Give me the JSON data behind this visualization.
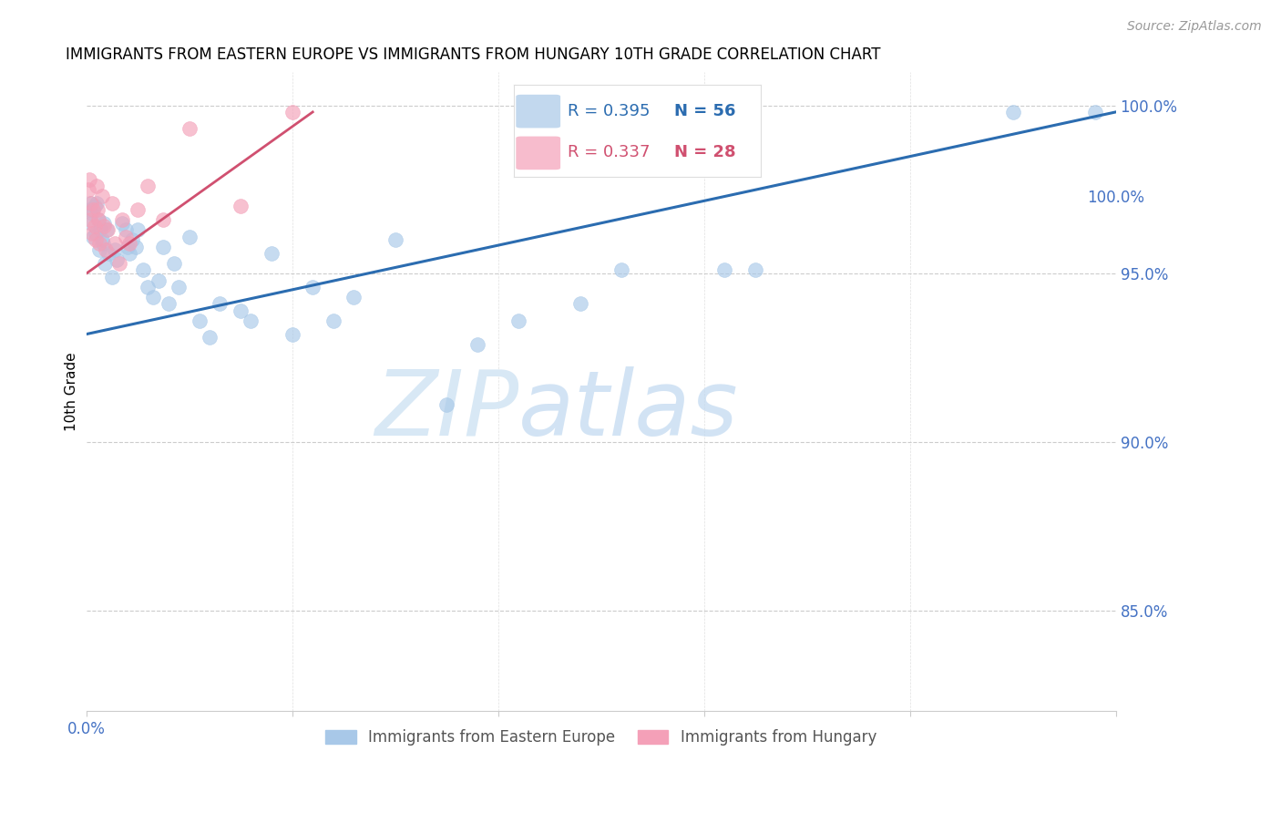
{
  "title": "IMMIGRANTS FROM EASTERN EUROPE VS IMMIGRANTS FROM HUNGARY 10TH GRADE CORRELATION CHART",
  "source": "Source: ZipAtlas.com",
  "ylabel": "10th Grade",
  "blue_label": "Immigrants from Eastern Europe",
  "pink_label": "Immigrants from Hungary",
  "blue_R": "R = 0.395",
  "blue_N": "N = 56",
  "pink_R": "R = 0.337",
  "pink_N": "N = 28",
  "blue_color": "#a8c8e8",
  "pink_color": "#f4a0b8",
  "blue_line_color": "#2b6cb0",
  "pink_line_color": "#d05070",
  "background_color": "#ffffff",
  "grid_color": "#cccccc",
  "watermark_zip": "ZIP",
  "watermark_atlas": "atlas",
  "blue_points_x": [
    0.003,
    0.004,
    0.005,
    0.006,
    0.007,
    0.008,
    0.009,
    0.01,
    0.012,
    0.013,
    0.014,
    0.015,
    0.016,
    0.017,
    0.018,
    0.02,
    0.022,
    0.025,
    0.028,
    0.03,
    0.035,
    0.038,
    0.04,
    0.042,
    0.045,
    0.048,
    0.05,
    0.055,
    0.06,
    0.065,
    0.07,
    0.075,
    0.08,
    0.085,
    0.09,
    0.1,
    0.11,
    0.12,
    0.13,
    0.15,
    0.16,
    0.18,
    0.2,
    0.22,
    0.24,
    0.26,
    0.3,
    0.35,
    0.38,
    0.42,
    0.48,
    0.52,
    0.62,
    0.65,
    0.9,
    0.98
  ],
  "blue_points_y": [
    0.969,
    0.971,
    0.965,
    0.968,
    0.961,
    0.97,
    0.962,
    0.971,
    0.966,
    0.957,
    0.963,
    0.96,
    0.959,
    0.965,
    0.953,
    0.963,
    0.956,
    0.949,
    0.957,
    0.954,
    0.965,
    0.963,
    0.958,
    0.956,
    0.96,
    0.958,
    0.963,
    0.951,
    0.946,
    0.943,
    0.948,
    0.958,
    0.941,
    0.953,
    0.946,
    0.961,
    0.936,
    0.931,
    0.941,
    0.939,
    0.936,
    0.956,
    0.932,
    0.946,
    0.936,
    0.943,
    0.96,
    0.911,
    0.929,
    0.936,
    0.941,
    0.951,
    0.951,
    0.951,
    0.998,
    0.998
  ],
  "pink_points_x": [
    0.002,
    0.003,
    0.004,
    0.005,
    0.006,
    0.007,
    0.008,
    0.009,
    0.01,
    0.011,
    0.012,
    0.013,
    0.015,
    0.017,
    0.019,
    0.021,
    0.025,
    0.028,
    0.032,
    0.035,
    0.038,
    0.042,
    0.05,
    0.06,
    0.075,
    0.1,
    0.15,
    0.2
  ],
  "pink_points_y": [
    0.975,
    0.978,
    0.966,
    0.971,
    0.962,
    0.969,
    0.964,
    0.96,
    0.976,
    0.969,
    0.966,
    0.959,
    0.973,
    0.964,
    0.957,
    0.963,
    0.971,
    0.959,
    0.953,
    0.966,
    0.961,
    0.959,
    0.969,
    0.976,
    0.966,
    0.993,
    0.97,
    0.998
  ],
  "blue_trend_x": [
    0.0,
    1.0
  ],
  "blue_trend_y": [
    0.932,
    0.998
  ],
  "pink_trend_x": [
    0.0,
    0.22
  ],
  "pink_trend_y": [
    0.95,
    0.998
  ],
  "x_ticks": [
    0.0,
    0.2,
    0.4,
    0.6,
    0.8,
    1.0
  ],
  "y_ticks": [
    0.85,
    0.9,
    0.95,
    1.0
  ],
  "y_tick_labels": [
    "85.0%",
    "90.0%",
    "95.0%",
    "100.0%"
  ],
  "xlim": [
    0.0,
    1.0
  ],
  "ylim": [
    0.82,
    1.01
  ]
}
